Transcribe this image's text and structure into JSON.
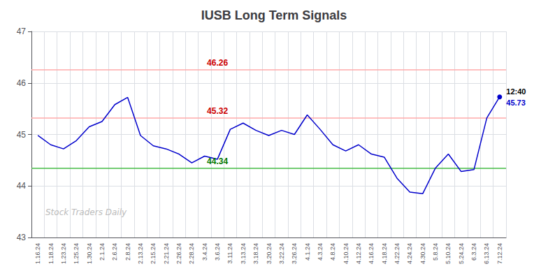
{
  "chart_data": {
    "type": "line",
    "title": "IUSB Long Term Signals",
    "categories": [
      "1.16.24",
      "1.18.24",
      "1.23.24",
      "1.25.24",
      "1.30.24",
      "2.1.24",
      "2.6.24",
      "2.8.24",
      "2.13.24",
      "2.15.24",
      "2.21.24",
      "2.26.24",
      "2.28.24",
      "3.4.24",
      "3.6.24",
      "3.11.24",
      "3.13.24",
      "3.18.24",
      "3.20.24",
      "3.22.24",
      "3.26.24",
      "4.1.24",
      "4.3.24",
      "4.8.24",
      "4.10.24",
      "4.12.24",
      "4.16.24",
      "4.18.24",
      "4.22.24",
      "4.24.24",
      "4.30.24",
      "5.8.24",
      "5.10.24",
      "5.24.24",
      "6.3.24",
      "6.13.24",
      "7.12.24"
    ],
    "values": [
      44.98,
      44.8,
      44.72,
      44.88,
      45.15,
      45.25,
      45.58,
      45.72,
      44.98,
      44.78,
      44.72,
      44.62,
      44.45,
      44.58,
      44.52,
      45.1,
      45.22,
      45.08,
      44.98,
      45.08,
      45.0,
      45.38,
      45.1,
      44.8,
      44.68,
      44.8,
      44.62,
      44.56,
      44.15,
      43.88,
      43.85,
      44.35,
      44.62,
      44.28,
      44.32,
      45.32,
      45.73
    ],
    "color": "#0000cc",
    "ylim": [
      43,
      47
    ],
    "yticks": [
      43,
      44,
      45,
      46,
      47
    ],
    "grid": true,
    "hlines": [
      {
        "value": 46.26,
        "color": "#ffaaaa",
        "label": "46.26",
        "label_color": "#cc0000"
      },
      {
        "value": 45.32,
        "color": "#ffaaaa",
        "label": "45.32",
        "label_color": "#cc0000"
      },
      {
        "value": 44.34,
        "color": "#44bb44",
        "label": "44.34",
        "label_color": "#007700"
      }
    ],
    "last_point_labels": [
      {
        "text": "12:40",
        "color": "#000000"
      },
      {
        "text": "45.73",
        "color": "#0000cc"
      }
    ],
    "watermark": {
      "text": "Stock Traders Daily",
      "color": "#bbbbbb"
    }
  }
}
